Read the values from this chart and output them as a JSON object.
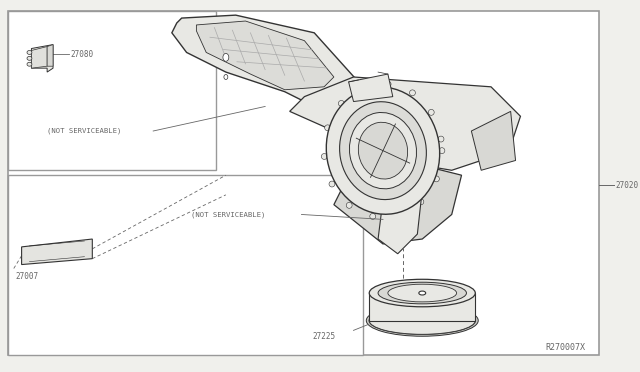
{
  "bg_color": "#f0f0ec",
  "white": "#ffffff",
  "border_color": "#999999",
  "line_color": "#666666",
  "dark_line": "#333333",
  "light_fill": "#e8e8e4",
  "mid_fill": "#d8d8d4",
  "diagram_code": "R270007X",
  "label_27080": "27080",
  "label_27007": "27007",
  "label_27020": "27020",
  "label_27225": "27225",
  "not_serviceable": "(NOT SERVICEABLE)",
  "fs": 5.5,
  "fs_code": 6.0
}
